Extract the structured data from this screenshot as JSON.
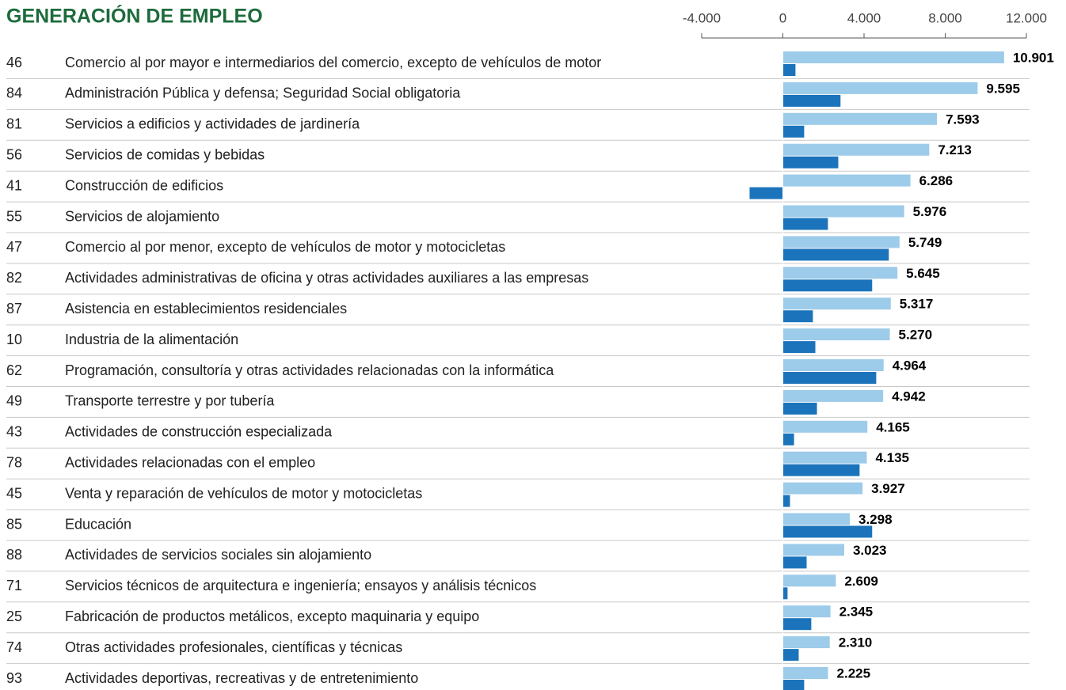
{
  "chart_data": {
    "type": "bar",
    "orientation": "horizontal",
    "title": "GENERACIÓN DE EMPLEO",
    "codes": [
      "46",
      "84",
      "81",
      "56",
      "41",
      "55",
      "47",
      "82",
      "87",
      "10",
      "62",
      "49",
      "43",
      "78",
      "45",
      "85",
      "88",
      "71",
      "25",
      "74",
      "93"
    ],
    "categories": [
      "Comercio al por mayor e intermediarios del comercio, excepto de vehículos de motor",
      "Administración Pública y defensa; Seguridad Social obligatoria",
      "Servicios a edificios y actividades de jardinería",
      "Servicios de comidas y bebidas",
      "Construcción de edificios",
      "Servicios de alojamiento",
      "Comercio al por menor, excepto de vehículos de motor y motocicletas",
      "Actividades administrativas de oficina y otras actividades auxiliares a las empresas",
      "Asistencia en establecimientos residenciales",
      "Industria de la alimentación",
      "Programación, consultoría y otras actividades relacionadas con la informática",
      "Transporte terrestre y por tubería",
      "Actividades de construcción especializada",
      "Actividades relacionadas con el empleo",
      "Venta y reparación de vehículos de motor y motocicletas",
      "Educación",
      "Actividades de servicios sociales sin alojamiento",
      "Servicios técnicos de arquitectura e ingeniería; ensayos y análisis técnicos",
      "Fabricación de productos metálicos, excepto maquinaria y equipo",
      "Otras actividades profesionales, científicas y técnicas",
      "Actividades deportivas, recreativas y de entretenimiento"
    ],
    "series": [
      {
        "color": "#9dcbea",
        "values": [
          10901,
          9595,
          7593,
          7213,
          6286,
          5976,
          5749,
          5645,
          5317,
          5270,
          4964,
          4942,
          4165,
          4135,
          3927,
          3298,
          3023,
          2609,
          2345,
          2310,
          2225
        ],
        "value_labels": [
          "10.901",
          "9.595",
          "7.593",
          "7.213",
          "6.286",
          "5.976",
          "5.749",
          "5.645",
          "5.317",
          "5.270",
          "4.964",
          "4.942",
          "4.165",
          "4.135",
          "3.927",
          "3.298",
          "3.023",
          "2.609",
          "2.345",
          "2.310",
          "2.225"
        ]
      },
      {
        "color": "#1b74bb",
        "values": [
          620,
          2840,
          1050,
          2730,
          -1640,
          2220,
          5220,
          4400,
          1480,
          1600,
          4600,
          1680,
          550,
          3780,
          350,
          4400,
          1170,
          230,
          1400,
          780,
          1050
        ]
      }
    ],
    "xlim": [
      -4000,
      12000
    ],
    "xticks": [
      {
        "value": -4000,
        "label": "-4.000"
      },
      0,
      {
        "value": 4000,
        "label": "4.000"
      },
      {
        "value": 8000,
        "label": "8.000"
      },
      {
        "value": 12000,
        "label": "12.000"
      }
    ]
  }
}
